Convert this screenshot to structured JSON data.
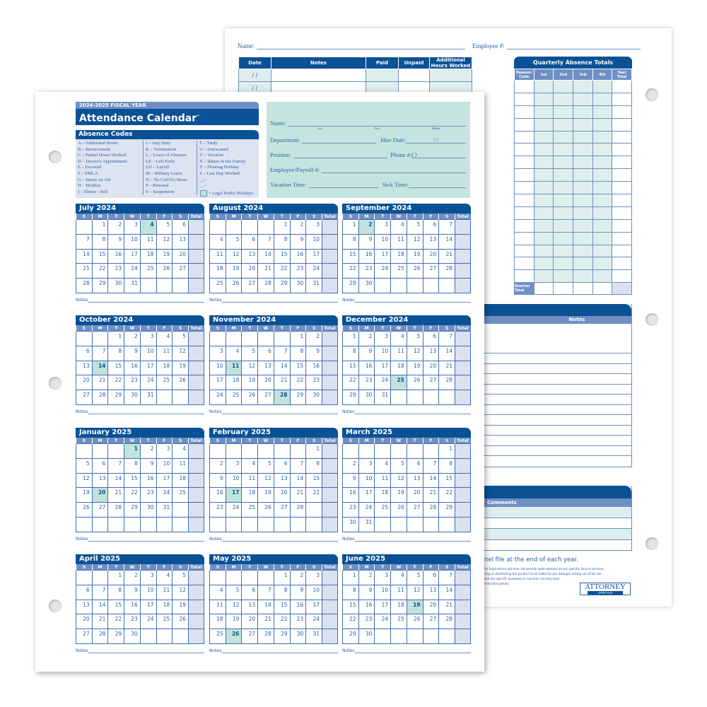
{
  "back": {
    "name_label": "Name:",
    "employee_label": "Employee #:",
    "log_headers": [
      "Date",
      "Notes",
      "Paid",
      "Unpaid",
      "Additional Hours Worked"
    ],
    "date_placeholder": "/   /",
    "quarterly": {
      "title": "Quarterly Absence Totals",
      "headers": [
        "Reason/ Code",
        "1st",
        "2nd",
        "3rd",
        "4th",
        "Year Total"
      ],
      "footer": "Quarter Total"
    },
    "notes_header": "Notes",
    "comments_header": "Comments",
    "instruction_fragment": "nel file at the end of each year.",
    "legal_fragments": [
      "for legal advice and does not provide legal opinions on any specific facts or services.",
      "cing or distributing this product is not liable for any damages arising out of the use",
      "and any specific questions or concerns you may have.",
      "with third parties."
    ],
    "logo": {
      "text": "ATTORNEY",
      "sub": "APPROVED"
    }
  },
  "front": {
    "fiscal_year": "2024-2025 FISCAL YEAR",
    "title": "Attendance Calendar",
    "tm": "™",
    "absence_codes_title": "Absence Codes",
    "codes_col1": [
      "A – Additional Hours",
      "B – Bereavement",
      "C – Partial Hours Worked",
      "D – Doctor's Appointment",
      "E – Excused",
      "F – FMLA",
      "G – Injury on Job",
      "H – Holiday",
      "I – Illness - Self"
    ],
    "codes_col2": [
      "J – Jury Duty",
      "K – Termination",
      "L – Leave of Absence",
      "LE – Left Early",
      "LO – Layoff",
      "M – Military Leave",
      "N – No Call/No Show",
      "P – Personal",
      "S – Suspension"
    ],
    "codes_col3": [
      "T – Tardy",
      "U – Unexcused",
      "V – Vacation",
      "X – Illness in the Family",
      "Y – Floating Holiday",
      "Z – Last Day Worked",
      "__–",
      "__–"
    ],
    "legend": "= Legal Public Holidays",
    "info": {
      "name": "Name:",
      "last": "Last",
      "first": "First",
      "middle": "Middle",
      "department": "Department:",
      "hire_date": "Hire Date:",
      "hire_slashes": "/       /",
      "position": "Position:",
      "phone": "Phone #:",
      "phone_parens": "(       )",
      "payroll": "Employee/Payroll #:",
      "vacation": "Vacation Time:",
      "sick": "Sick Time:"
    },
    "weekdays": [
      "S",
      "M",
      "T",
      "W",
      "T",
      "F",
      "S"
    ],
    "total_label": "Total",
    "notes_label": "Notes",
    "months": [
      {
        "name": "July 2024",
        "start": 1,
        "days": 31,
        "holidays": [
          4
        ]
      },
      {
        "name": "August 2024",
        "start": 4,
        "days": 31,
        "holidays": []
      },
      {
        "name": "September 2024",
        "start": 0,
        "days": 30,
        "holidays": [
          2
        ]
      },
      {
        "name": "October 2024",
        "start": 2,
        "days": 31,
        "holidays": [
          14
        ]
      },
      {
        "name": "November 2024",
        "start": 5,
        "days": 30,
        "holidays": [
          11,
          28
        ]
      },
      {
        "name": "December 2024",
        "start": 0,
        "days": 31,
        "holidays": [
          25
        ]
      },
      {
        "name": "January 2025",
        "start": 3,
        "days": 31,
        "holidays": [
          1,
          20
        ]
      },
      {
        "name": "February 2025",
        "start": 6,
        "days": 28,
        "holidays": [
          17
        ]
      },
      {
        "name": "March 2025",
        "start": 6,
        "days": 31,
        "holidays": []
      },
      {
        "name": "April 2025",
        "start": 2,
        "days": 30,
        "holidays": []
      },
      {
        "name": "May 2025",
        "start": 4,
        "days": 31,
        "holidays": [
          26
        ]
      },
      {
        "name": "June 2025",
        "start": 0,
        "days": 30,
        "holidays": [
          19
        ]
      }
    ]
  },
  "colors": {
    "dark_blue": "#0a5196",
    "mid_blue": "#6f8fc3",
    "lavender": "#dbe1ef",
    "holiday_teal": "#c2e3dc",
    "info_teal": "#c5e4df"
  }
}
